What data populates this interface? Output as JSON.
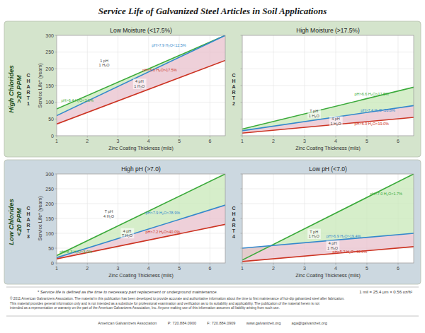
{
  "title": "Service Life of Galvanized Steel Articles in Soil Applications",
  "row_labels": [
    "High Chlorides\n>20 PPM",
    "Low Chlorides\n<20 PPM"
  ],
  "panel_colors": [
    "#d4e4cc",
    "#ccd8e0"
  ],
  "footer": "* Service life is defined as the time to necessary part replacement or underground maintenance.",
  "footer_right": "1 mil = 25.4 μm × 0.56 oz/ft²",
  "copyright": "© 2011 American Galvanizers Association. The material in this publication has been developed to provide accurate and authoritative information about the time to first maintenance of hot-dip galvanized steel after fabrication.\nThis material provides general information only and is not intended as a substitute for professional examination and verification as to its suitability and applicability. The publication of the material herein is not\nintended as a representation or warranty on the part of the American Galvanizers Association, Inc. Anyone making use of this information assumes all liability arising from such use.",
  "company": "American Galvanizers Association          P: 720.884.0900          F: 720.884.0909          www.galvanizeit.org          aga@galvanizeit.org",
  "chart_data": [
    {
      "type": "line",
      "title": "Low Moisture (<17.5%)",
      "label": "CHART 1",
      "xlabel": "Zinc Coating Thickness (mils)",
      "ylabel": "Service Life* (years)",
      "x": [
        1.0,
        6.5
      ],
      "xlim": [
        1.0,
        6.5
      ],
      "ylim": [
        0,
        300
      ],
      "xticks": [
        1.0,
        2.0,
        3.0,
        4.0,
        5.0,
        6.0
      ],
      "yticks": [
        0,
        50,
        100,
        150,
        200,
        250,
        300
      ],
      "grid": true,
      "series": [
        {
          "color": "#3aaa3a",
          "values": [
            80,
            300
          ]
        },
        {
          "color": "#3388cc",
          "values": [
            60,
            300
          ]
        },
        {
          "color": "#cc3322",
          "values": [
            35,
            225
          ]
        }
      ],
      "fill_colors": [
        "#c8e8b8",
        "#e8c0cc"
      ],
      "annotations": [
        {
          "text": "pH>6.4 H₂O<3.0%",
          "x": 1.15,
          "y": 105,
          "color": "#3aaa3a"
        },
        {
          "text": "pH>7.9 H₂O<12.5%",
          "x": 4.1,
          "y": 270,
          "color": "#3388cc"
        },
        {
          "text": "pH<6.0 H₂O>17.5%",
          "x": 3.8,
          "y": 197,
          "color": "#cc3322"
        },
        {
          "text": "1 pH\n1 H₂O",
          "x": 2.55,
          "y": 218
        },
        {
          "text": "4 pH\n1 H₂O",
          "x": 3.7,
          "y": 155
        }
      ]
    },
    {
      "type": "line",
      "title": "High Moisture (>17.5%)",
      "label": "CHART 2",
      "xlabel": "Zinc Coating Thickness (mils)",
      "tick_labels": "x",
      "x": [
        1.0,
        6.5
      ],
      "xlim": [
        1.0,
        6.5
      ],
      "ylim": [
        0,
        300
      ],
      "xticks": [
        1.0,
        2.0,
        3.0,
        4.0,
        5.0,
        6.0
      ],
      "yticks": [
        0,
        50,
        100,
        150,
        200,
        250,
        300
      ],
      "grid": true,
      "series": [
        {
          "color": "#3aaa3a",
          "values": [
            20,
            145
          ]
        },
        {
          "color": "#3388cc",
          "values": [
            15,
            90
          ]
        },
        {
          "color": "#cc3322",
          "values": [
            8,
            55
          ]
        }
      ],
      "fill_colors": [
        "#c8e8b8",
        "#e8c0cc"
      ],
      "annotations": [
        {
          "text": "pH>6.6 H₂O>17.5%",
          "x": 4.6,
          "y": 124,
          "color": "#3aaa3a"
        },
        {
          "text": "pH>7.4 H₂O<26.8%",
          "x": 4.8,
          "y": 76,
          "color": "#3388cc"
        },
        {
          "text": "pH<6.0 H₂O>19.0%",
          "x": 4.6,
          "y": 36,
          "color": "#cc3322"
        },
        {
          "text": "T pH\n1 H₂O",
          "x": 3.3,
          "y": 67
        },
        {
          "text": "4 pH\n1 H₂O",
          "x": 4.0,
          "y": 43
        }
      ]
    },
    {
      "type": "line",
      "title": "High pH (>7.0)",
      "label": "CHART 3",
      "xlabel": "Zinc Coating Thickness (mils)",
      "ylabel": "Service Life* (years)",
      "x": [
        1.0,
        6.5
      ],
      "xlim": [
        1.0,
        6.5
      ],
      "ylim": [
        0,
        300
      ],
      "xticks": [
        1.0,
        2.0,
        3.0,
        4.0,
        5.0,
        6.0
      ],
      "yticks": [
        0,
        50,
        100,
        150,
        200,
        250,
        300
      ],
      "grid": true,
      "series": [
        {
          "color": "#3aaa3a",
          "values": [
            25,
            300
          ]
        },
        {
          "color": "#3388cc",
          "values": [
            18,
            195
          ]
        },
        {
          "color": "#cc3322",
          "values": [
            14,
            130
          ]
        }
      ],
      "fill_colors": [
        "#c8e8b8",
        "#e8c0cc"
      ],
      "annotations": [
        {
          "text": "pH>8.3 H₂O<3.0%",
          "x": 1.1,
          "y": 38,
          "color": "#3aaa3a"
        },
        {
          "text": "pH>7.9 H₂O>78.9%",
          "x": 3.9,
          "y": 168,
          "color": "#3388cc"
        },
        {
          "text": "pH>7.2 H₂O>40.0%",
          "x": 3.9,
          "y": 105,
          "color": "#cc3322"
        },
        {
          "text": "T pH\n4 H₂O",
          "x": 2.7,
          "y": 165
        },
        {
          "text": "4 pH\nT H₂O",
          "x": 3.3,
          "y": 100
        }
      ]
    },
    {
      "type": "line",
      "title": "Low pH (<7.0)",
      "label": "CHART 4",
      "xlabel": "Zinc Coating Thickness (mils)",
      "tick_labels": "x",
      "x": [
        1.0,
        6.5
      ],
      "xlim": [
        1.0,
        6.5
      ],
      "ylim": [
        0,
        300
      ],
      "xticks": [
        1.0,
        2.0,
        3.0,
        4.0,
        5.0,
        6.0
      ],
      "yticks": [
        0,
        50,
        100,
        150,
        200,
        250,
        300
      ],
      "grid": true,
      "series": [
        {
          "color": "#3aaa3a",
          "values": [
            10,
            300
          ]
        },
        {
          "color": "#3388cc",
          "values": [
            50,
            100
          ]
        },
        {
          "color": "#cc3322",
          "values": [
            5,
            55
          ]
        }
      ],
      "fill_colors": [
        "#c8e8b8",
        "#e8c0cc"
      ],
      "annotations": [
        {
          "text": "pH>7.0 H₂O<1.7%",
          "x": 5.1,
          "y": 234,
          "color": "#3aaa3a"
        },
        {
          "text": "pH>6.9 H₂O>19.4%",
          "x": 3.7,
          "y": 90,
          "color": "#3388cc"
        },
        {
          "text": "pH<5.2 H₂O>40.0%",
          "x": 3.9,
          "y": 38,
          "color": "#cc3322"
        },
        {
          "text": "T pH\n1 H₂O",
          "x": 3.3,
          "y": 98
        },
        {
          "text": "4 pH\n1 H₂O",
          "x": 3.9,
          "y": 58
        }
      ]
    }
  ]
}
